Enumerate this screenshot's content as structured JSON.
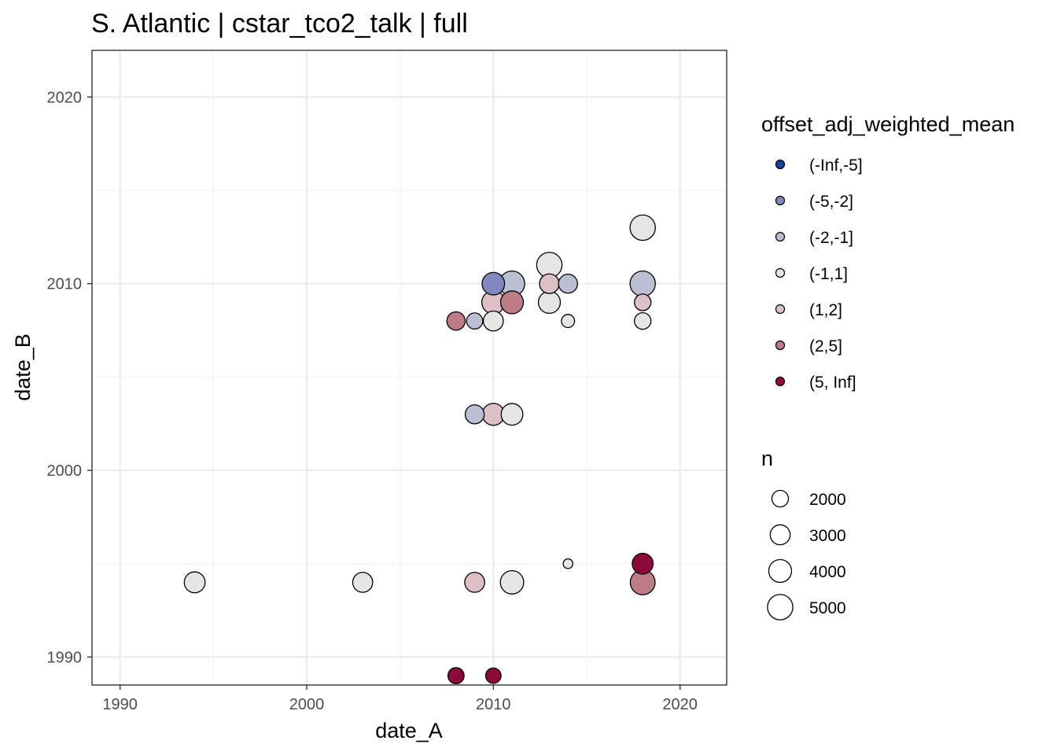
{
  "chart_data": {
    "type": "scatter",
    "title": "S. Atlantic | cstar_tco2_talk | full",
    "xlabel": "date_A",
    "ylabel": "date_B",
    "xlim": [
      1988.5,
      2022.5
    ],
    "ylim": [
      1988.5,
      2022.5
    ],
    "x_ticks": [
      1990,
      2000,
      2010,
      2020
    ],
    "y_ticks": [
      1990,
      2000,
      2010,
      2020
    ],
    "grid": true,
    "legend_position": "right",
    "color_legend": {
      "title": "offset_adj_weighted_mean",
      "items": [
        {
          "label": "(-Inf,-5]",
          "color": "#1b3f9a"
        },
        {
          "label": "(-5,-2]",
          "color": "#8088bf"
        },
        {
          "label": "(-2,-1]",
          "color": "#bbbfd4"
        },
        {
          "label": "(-1,1]",
          "color": "#e5e5e5"
        },
        {
          "label": "(1,2]",
          "color": "#dcc0c6"
        },
        {
          "label": "(2,5]",
          "color": "#be7c87"
        },
        {
          "label": "(5, Inf]",
          "color": "#8b0a3a"
        }
      ]
    },
    "size_legend": {
      "title": "n",
      "items": [
        {
          "label": "2000",
          "n": 2000
        },
        {
          "label": "3000",
          "n": 3000
        },
        {
          "label": "4000",
          "n": 4000
        },
        {
          "label": "5000",
          "n": 5000
        }
      ]
    },
    "points": [
      {
        "x": 1994,
        "y": 1994,
        "n": 3300,
        "bin": "(-1,1]"
      },
      {
        "x": 2003,
        "y": 1994,
        "n": 3000,
        "bin": "(-1,1]"
      },
      {
        "x": 2009,
        "y": 1994,
        "n": 3000,
        "bin": "(1,2]"
      },
      {
        "x": 2011,
        "y": 1994,
        "n": 4200,
        "bin": "(-1,1]"
      },
      {
        "x": 2014,
        "y": 1995,
        "n": 600,
        "bin": "(-1,1]"
      },
      {
        "x": 2018,
        "y": 1995,
        "n": 3300,
        "bin": "(5, Inf]"
      },
      {
        "x": 2018,
        "y": 1994,
        "n": 4800,
        "bin": "(2,5]"
      },
      {
        "x": 2008,
        "y": 1989,
        "n": 1900,
        "bin": "(5, Inf]"
      },
      {
        "x": 2010,
        "y": 1989,
        "n": 1700,
        "bin": "(5, Inf]"
      },
      {
        "x": 2009,
        "y": 2003,
        "n": 2700,
        "bin": "(-2,-1]"
      },
      {
        "x": 2010,
        "y": 2003,
        "n": 3700,
        "bin": "(1,2]"
      },
      {
        "x": 2011,
        "y": 2003,
        "n": 3600,
        "bin": "(-1,1]"
      },
      {
        "x": 2008,
        "y": 2008,
        "n": 2500,
        "bin": "(2,5]"
      },
      {
        "x": 2009,
        "y": 2008,
        "n": 1900,
        "bin": "(-2,-1]"
      },
      {
        "x": 2010,
        "y": 2008,
        "n": 3000,
        "bin": "(-1,1]"
      },
      {
        "x": 2014,
        "y": 2008,
        "n": 1200,
        "bin": "(-1,1]"
      },
      {
        "x": 2018,
        "y": 2008,
        "n": 2000,
        "bin": "(-1,1]"
      },
      {
        "x": 2010,
        "y": 2009,
        "n": 4100,
        "bin": "(1,2]"
      },
      {
        "x": 2011,
        "y": 2009,
        "n": 4000,
        "bin": "(2,5]"
      },
      {
        "x": 2013,
        "y": 2009,
        "n": 3700,
        "bin": "(-1,1]"
      },
      {
        "x": 2018,
        "y": 2009,
        "n": 2000,
        "bin": "(1,2]"
      },
      {
        "x": 2010,
        "y": 2010,
        "n": 3900,
        "bin": "(-5,-2]"
      },
      {
        "x": 2011,
        "y": 2010,
        "n": 5000,
        "bin": "(-2,-1]"
      },
      {
        "x": 2013,
        "y": 2010,
        "n": 2900,
        "bin": "(1,2]"
      },
      {
        "x": 2014,
        "y": 2010,
        "n": 2700,
        "bin": "(-2,-1]"
      },
      {
        "x": 2018,
        "y": 2010,
        "n": 5000,
        "bin": "(-2,-1]"
      },
      {
        "x": 2013,
        "y": 2011,
        "n": 5000,
        "bin": "(-1,1]"
      },
      {
        "x": 2018,
        "y": 2013,
        "n": 5000,
        "bin": "(-1,1]"
      }
    ]
  }
}
